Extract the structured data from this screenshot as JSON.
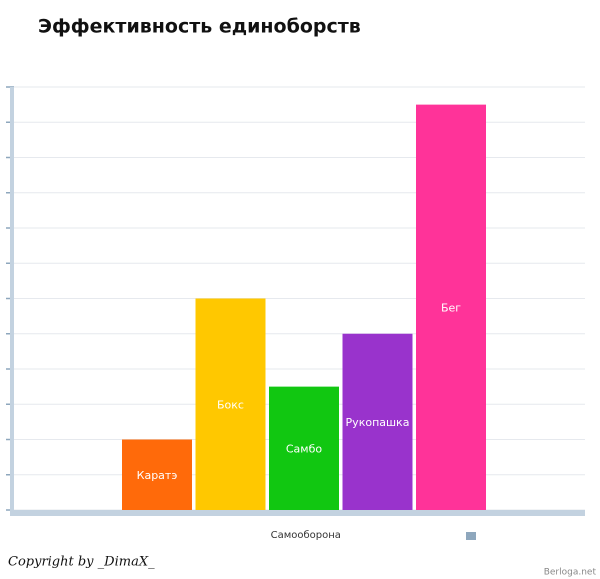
{
  "chart_data": {
    "type": "bar",
    "title": "Эффективность единоборств",
    "categories": [
      "Самооборона"
    ],
    "series": [
      {
        "name": "Каратэ",
        "color": "#ff6a0a",
        "values": [
          2
        ]
      },
      {
        "name": "Бокс",
        "color": "#ffc800",
        "values": [
          6
        ]
      },
      {
        "name": "Самбо",
        "color": "#11c711",
        "values": [
          3.5
        ]
      },
      {
        "name": "Рукопашка",
        "color": "#9933cc",
        "values": [
          5
        ]
      },
      {
        "name": "Бег",
        "color": "#ff3399",
        "values": [
          11.5
        ]
      }
    ],
    "ylim": [
      0,
      12
    ],
    "yticks": [
      0,
      1,
      2,
      3,
      4,
      5,
      6,
      7,
      8,
      9,
      10,
      11,
      12
    ],
    "grid": true
  },
  "copyright": "Copyright by _DimaX_",
  "watermark": "Berloga.net"
}
